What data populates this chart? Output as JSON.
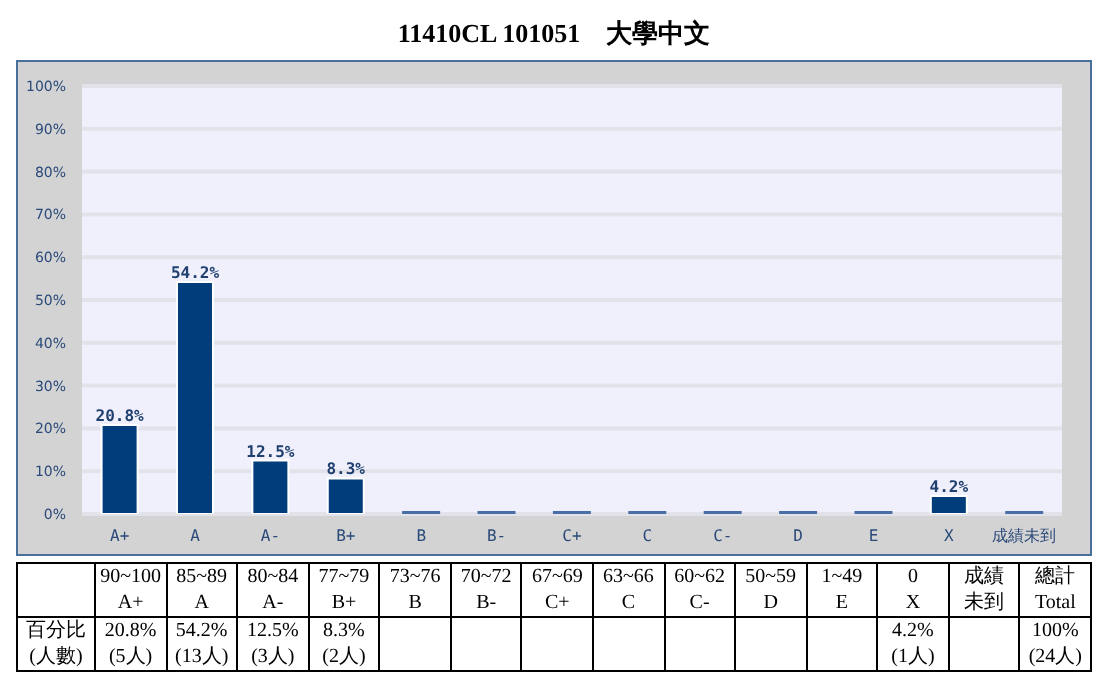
{
  "chart_data": {
    "type": "bar",
    "title": "11410CL 101051　大學中文",
    "categories": [
      "A+",
      "A",
      "A-",
      "B+",
      "B",
      "B-",
      "C+",
      "C",
      "C-",
      "D",
      "E",
      "X",
      "成績未到"
    ],
    "values": [
      20.8,
      54.2,
      12.5,
      8.3,
      0,
      0,
      0,
      0,
      0,
      0,
      0,
      4.2,
      0
    ],
    "value_labels": [
      "20.8%",
      "54.2%",
      "12.5%",
      "8.3%",
      null,
      null,
      null,
      null,
      null,
      null,
      null,
      "4.2%",
      null
    ],
    "color": "#003d7a",
    "ylim": [
      0,
      100
    ],
    "yticks": [
      {
        "value": 0,
        "label": "0%"
      },
      {
        "value": 10,
        "label": "10%"
      },
      {
        "value": 20,
        "label": "20%"
      },
      {
        "value": 30,
        "label": "30%"
      },
      {
        "value": 40,
        "label": "40%"
      },
      {
        "value": 50,
        "label": "50%"
      },
      {
        "value": 60,
        "label": "60%"
      },
      {
        "value": 70,
        "label": "70%"
      },
      {
        "value": 80,
        "label": "80%"
      },
      {
        "value": 90,
        "label": "90%"
      },
      {
        "value": 100,
        "label": "100%"
      }
    ],
    "grid": "y",
    "legend": false,
    "annotations": [
      "90~100",
      "A+",
      "85~89",
      "A",
      "80~84",
      "A-",
      "77~79",
      "B+",
      "73~76",
      "B",
      "70~72",
      "B-",
      "67~69",
      "C+",
      "63~66",
      "C",
      "60~62",
      "C-",
      "50~59",
      "D",
      "1~49",
      "E",
      "0",
      "X",
      "成績",
      "未到",
      "總計",
      "Total",
      "百分比",
      "(人數)",
      "100%",
      "(24人)",
      "(5人)",
      "(13人)",
      "(3人)",
      "(2人)",
      "(1人)"
    ]
  }
}
